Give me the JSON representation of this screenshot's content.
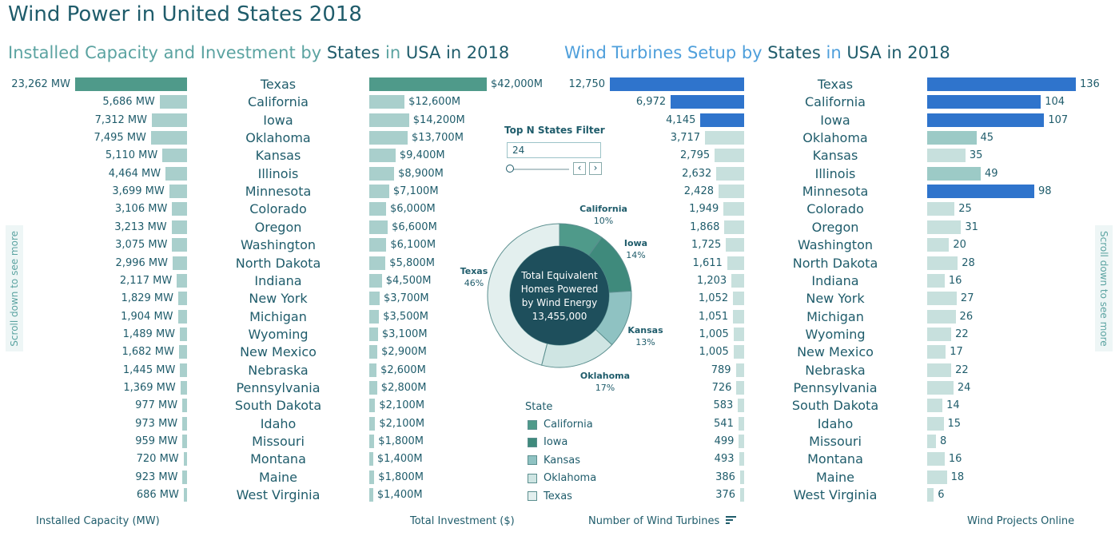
{
  "title": "Wind Power in United States 2018",
  "left_subtitle": {
    "part1": "Installed Capacity and Investment by ",
    "part2": "States",
    "part3": " in ",
    "part4": "USA in 2018"
  },
  "right_subtitle": {
    "part1": "Wind Turbines Setup by ",
    "part2": "States",
    "part3": " in ",
    "part4": "USA in 2018"
  },
  "scroll_hint": "Scroll down to see more",
  "filter": {
    "title": "Top N States Filter",
    "value": "24",
    "prev_icon": "chevron-left-icon",
    "next_icon": "chevron-right-icon"
  },
  "footer": {
    "capacity": "Installed Capacity (MW)",
    "investment": "Total Investment ($)",
    "turbines": "Number of Wind Turbines",
    "projects": "Wind Projects Online"
  },
  "colors": {
    "texas_green": "#4f9a8a",
    "capacity_light": "#a9cfcc",
    "turbine_blue": "#2f74cc",
    "turbine_light": "#c7e0dd",
    "title": "#1f5c6b",
    "subtitle_light": "#5ba3a1"
  },
  "chart_data": [
    {
      "type": "bar",
      "name": "installed-capacity",
      "categories": [
        "Texas",
        "California",
        "Iowa",
        "Oklahoma",
        "Kansas",
        "Illinois",
        "Minnesota",
        "Colorado",
        "Oregon",
        "Washington",
        "North Dakota",
        "Indiana",
        "New York",
        "Michigan",
        "Wyoming",
        "New Mexico",
        "Nebraska",
        "Pennsylvania",
        "South Dakota",
        "Idaho",
        "Missouri",
        "Montana",
        "Maine",
        "West Virginia"
      ],
      "values": [
        23262,
        5686,
        7312,
        7495,
        5110,
        4464,
        3699,
        3106,
        3213,
        3075,
        2996,
        2117,
        1829,
        1904,
        1489,
        1682,
        1445,
        1369,
        977,
        973,
        959,
        720,
        923,
        686
      ],
      "labels": [
        "23,262 MW",
        "5,686 MW",
        "7,312 MW",
        "7,495 MW",
        "5,110 MW",
        "4,464 MW",
        "3,699 MW",
        "3,106 MW",
        "3,213 MW",
        "3,075 MW",
        "2,996 MW",
        "2,117 MW",
        "1,829 MW",
        "1,904 MW",
        "1,489 MW",
        "1,682 MW",
        "1,445 MW",
        "1,369 MW",
        "977 MW",
        "973 MW",
        "959 MW",
        "720 MW",
        "923 MW",
        "686 MW"
      ],
      "xlabel": "Installed Capacity (MW)"
    },
    {
      "type": "bar",
      "name": "total-investment",
      "categories": [
        "Texas",
        "California",
        "Iowa",
        "Oklahoma",
        "Kansas",
        "Illinois",
        "Minnesota",
        "Colorado",
        "Oregon",
        "Washington",
        "North Dakota",
        "Indiana",
        "New York",
        "Michigan",
        "Wyoming",
        "New Mexico",
        "Nebraska",
        "Pennsylvania",
        "South Dakota",
        "Idaho",
        "Missouri",
        "Montana",
        "Maine",
        "West Virginia"
      ],
      "values": [
        42000,
        12600,
        14200,
        13700,
        9400,
        8900,
        7100,
        6000,
        6600,
        6100,
        5800,
        4500,
        3700,
        3500,
        3100,
        2900,
        2600,
        2800,
        2100,
        2100,
        1800,
        1400,
        1800,
        1400
      ],
      "labels": [
        "$42,000M",
        "$12,600M",
        "$14,200M",
        "$13,700M",
        "$9,400M",
        "$8,900M",
        "$7,100M",
        "$6,000M",
        "$6,600M",
        "$6,100M",
        "$5,800M",
        "$4,500M",
        "$3,700M",
        "$3,500M",
        "$3,100M",
        "$2,900M",
        "$2,600M",
        "$2,800M",
        "$2,100M",
        "$2,100M",
        "$1,800M",
        "$1,400M",
        "$1,800M",
        "$1,400M"
      ],
      "xlabel": "Total Investment ($)"
    },
    {
      "type": "bar",
      "name": "wind-turbines",
      "categories": [
        "Texas",
        "California",
        "Iowa",
        "Oklahoma",
        "Kansas",
        "Illinois",
        "Minnesota",
        "Colorado",
        "Oregon",
        "Washington",
        "North Dakota",
        "Indiana",
        "New York",
        "Michigan",
        "Wyoming",
        "New Mexico",
        "Nebraska",
        "Pennsylvania",
        "South Dakota",
        "Idaho",
        "Missouri",
        "Montana",
        "Maine",
        "West Virginia"
      ],
      "values": [
        12750,
        6972,
        4145,
        3717,
        2795,
        2632,
        2428,
        1949,
        1868,
        1725,
        1611,
        1203,
        1052,
        1051,
        1005,
        1005,
        789,
        726,
        583,
        541,
        499,
        493,
        386,
        376
      ],
      "labels": [
        "12,750",
        "6,972",
        "4,145",
        "3,717",
        "2,795",
        "2,632",
        "2,428",
        "1,949",
        "1,868",
        "1,725",
        "1,611",
        "1,203",
        "1,052",
        "1,051",
        "1,005",
        "1,005",
        "789",
        "726",
        "583",
        "541",
        "499",
        "493",
        "386",
        "376"
      ],
      "xlabel": "Number of Wind Turbines"
    },
    {
      "type": "bar",
      "name": "wind-projects",
      "categories": [
        "Texas",
        "California",
        "Iowa",
        "Oklahoma",
        "Kansas",
        "Illinois",
        "Minnesota",
        "Colorado",
        "Oregon",
        "Washington",
        "North Dakota",
        "Indiana",
        "New York",
        "Michigan",
        "Wyoming",
        "New Mexico",
        "Nebraska",
        "Pennsylvania",
        "South Dakota",
        "Idaho",
        "Missouri",
        "Montana",
        "Maine",
        "West Virginia"
      ],
      "values": [
        136,
        104,
        107,
        45,
        35,
        49,
        98,
        25,
        31,
        20,
        28,
        16,
        27,
        26,
        22,
        17,
        22,
        24,
        14,
        15,
        8,
        16,
        18,
        6
      ],
      "labels": [
        "136",
        "104",
        "107",
        "45",
        "35",
        "49",
        "98",
        "25",
        "31",
        "20",
        "28",
        "16",
        "27",
        "26",
        "22",
        "17",
        "22",
        "24",
        "14",
        "15",
        "8",
        "16",
        "18",
        "6"
      ],
      "xlabel": "Wind Projects Online"
    },
    {
      "type": "pie",
      "name": "homes-powered",
      "center_text": [
        "Total Equivalent",
        "Homes Powered",
        "by Wind Energy",
        "13,455,000"
      ],
      "legend_title": "State",
      "slices": [
        {
          "name": "California",
          "value": 10,
          "label": "10%",
          "color": "#4f9a8a"
        },
        {
          "name": "Iowa",
          "value": 14,
          "label": "14%",
          "color": "#3f8a7c"
        },
        {
          "name": "Kansas",
          "value": 13,
          "label": "13%",
          "color": "#8fc2c2"
        },
        {
          "name": "Oklahoma",
          "value": 17,
          "label": "17%",
          "color": "#cfe5e3"
        },
        {
          "name": "Texas",
          "value": 46,
          "label": "46%",
          "color": "#e3efee"
        }
      ]
    }
  ]
}
